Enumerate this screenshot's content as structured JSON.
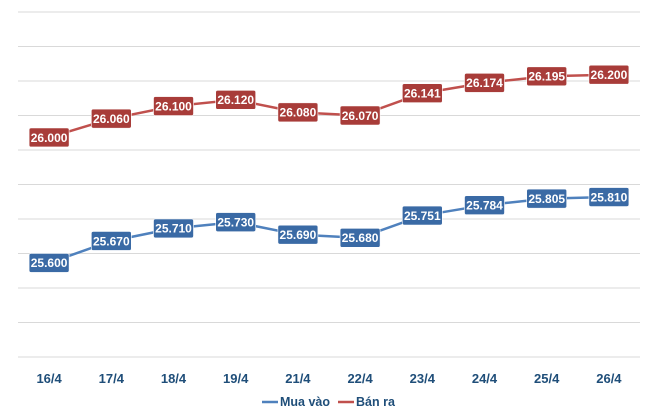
{
  "chart_data": {
    "type": "line",
    "title": "",
    "xlabel": "",
    "ylabel": "",
    "categories": [
      "16/4",
      "17/4",
      "18/4",
      "19/4",
      "21/4",
      "22/4",
      "23/4",
      "24/4",
      "25/4",
      "26/4"
    ],
    "ylim": [
      25300,
      26400
    ],
    "grid": true,
    "legend_position": "bottom",
    "series": [
      {
        "name": "Mua vào",
        "color": "#4f81bd",
        "label_bg": "#3a6aa5",
        "values": [
          25600,
          25670,
          25710,
          25730,
          25690,
          25680,
          25751,
          25784,
          25805,
          25810
        ],
        "labels": [
          "25.600",
          "25.670",
          "25.710",
          "25.730",
          "25.690",
          "25.680",
          "25.751",
          "25.784",
          "25.805",
          "25.810"
        ]
      },
      {
        "name": "Bán ra",
        "color": "#c0504d",
        "label_bg": "#a83c39",
        "values": [
          26000,
          26060,
          26100,
          26120,
          26080,
          26070,
          26141,
          26174,
          26195,
          26200
        ],
        "labels": [
          "26.000",
          "26.060",
          "26.100",
          "26.120",
          "26.080",
          "26.070",
          "26.141",
          "26.174",
          "26.195",
          "26.200"
        ]
      }
    ]
  }
}
